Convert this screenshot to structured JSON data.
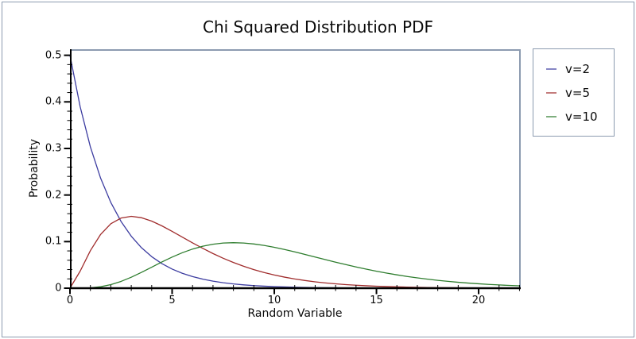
{
  "window": {
    "background": "#ffffff",
    "border_color": "#8c9bb0"
  },
  "chart_data": {
    "type": "line",
    "title": "Chi Squared Distribution PDF",
    "xlabel": "Random Variable",
    "ylabel": "Probability",
    "xlim": [
      0,
      22.06
    ],
    "ylim": [
      0,
      0.513
    ],
    "grid": false,
    "axis_color": "#000000",
    "frame_color": "#8c9bb0",
    "x_tick_labels": [
      "0",
      "5",
      "10",
      "15",
      "20"
    ],
    "x_tick_values": [
      0,
      5,
      10,
      15,
      20
    ],
    "x_minor_step": 1,
    "y_tick_labels": [
      "0",
      "0.1",
      "0.2",
      "0.3",
      "0.4",
      "0.5"
    ],
    "y_tick_values": [
      0,
      0.1,
      0.2,
      0.3,
      0.4,
      0.5
    ],
    "y_minor_step": 0.02,
    "legend_position": "outside-right",
    "x": [
      0,
      0.5,
      1,
      1.5,
      2,
      2.5,
      3,
      3.5,
      4,
      4.5,
      5,
      5.5,
      6,
      6.5,
      7,
      7.5,
      8,
      8.5,
      9,
      9.5,
      10,
      10.5,
      11,
      11.5,
      12,
      12.5,
      13,
      13.5,
      14,
      14.5,
      15,
      15.5,
      16,
      16.5,
      17,
      17.5,
      18,
      18.5,
      19,
      19.5,
      20,
      20.5,
      21,
      21.5,
      22
    ],
    "series": [
      {
        "name": "v=2",
        "color": "#3c3ca0",
        "values": [
          0.5,
          0.3894,
          0.30327,
          0.23618,
          0.18394,
          0.14325,
          0.11157,
          0.08689,
          0.06767,
          0.0527,
          0.04104,
          0.03196,
          0.02489,
          0.01939,
          0.0151,
          0.01176,
          0.00916,
          0.00713,
          0.00555,
          0.00433,
          0.00337,
          0.00262,
          0.00204,
          0.00159,
          0.00124,
          0.00097,
          0.00075,
          0.00059,
          0.00046,
          0.00035,
          0.00028,
          0.00022,
          0.00017,
          0.00013,
          0.0001,
          8e-05,
          6e-05,
          5e-05,
          4e-05,
          3e-05,
          2e-05,
          2e-05,
          1e-05,
          1e-05,
          1e-05
        ]
      },
      {
        "name": "v=5",
        "color": "#a02c2c",
        "values": [
          0,
          0.03663,
          0.08066,
          0.11542,
          0.13839,
          0.1506,
          0.15418,
          0.15135,
          0.14399,
          0.1338,
          0.12205,
          0.10965,
          0.0973,
          0.08548,
          0.07437,
          0.06424,
          0.05512,
          0.04701,
          0.03989,
          0.0337,
          0.02834,
          0.02374,
          0.01983,
          0.01651,
          0.0137,
          0.01135,
          0.00937,
          0.00772,
          0.00635,
          0.00521,
          0.00427,
          0.0035,
          0.00286,
          0.00233,
          0.0019,
          0.00154,
          0.00125,
          0.00102,
          0.00082,
          0.00067,
          0.00054,
          0.00044,
          0.00035,
          0.00028,
          0.00023
        ]
      },
      {
        "name": "v=10",
        "color": "#2e7d2e",
        "values": [
          0,
          6e-05,
          0.00079,
          0.00311,
          0.00767,
          0.01457,
          0.02353,
          0.03396,
          0.04511,
          0.05629,
          0.0668,
          0.07617,
          0.08402,
          0.09012,
          0.0944,
          0.09689,
          0.09768,
          0.09695,
          0.09491,
          0.09176,
          0.08773,
          0.08305,
          0.07791,
          0.07248,
          0.06693,
          0.06137,
          0.05591,
          0.05064,
          0.04561,
          0.04088,
          0.03646,
          0.03237,
          0.02863,
          0.02521,
          0.02213,
          0.01935,
          0.01687,
          0.01466,
          0.0127,
          0.01097,
          0.00946,
          0.00813,
          0.00697,
          0.00597,
          0.00509
        ]
      }
    ]
  }
}
